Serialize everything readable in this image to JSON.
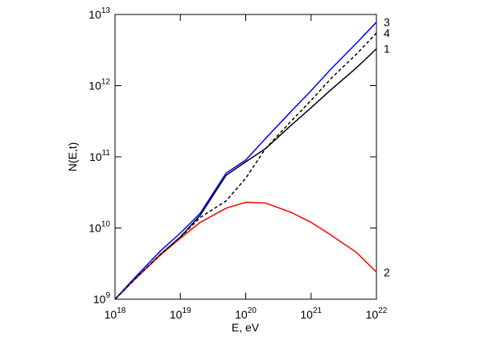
{
  "chart_data": {
    "type": "line",
    "xlabel": "E, eV",
    "ylabel": "N(E,t)",
    "x": [
      1e+18,
      2e+18,
      5e+18,
      1e+19,
      2e+19,
      5e+19,
      1e+20,
      2e+20,
      5e+20,
      1e+21,
      2e+21,
      5e+21,
      1e+22
    ],
    "xscale": "log",
    "yscale": "log",
    "xlim": [
      1e+18,
      1e+22
    ],
    "ylim": [
      1000000000.0,
      10000000000000.0
    ],
    "xticks": [
      {
        "value": 1e+18,
        "label": "10^18"
      },
      {
        "value": 1e+19,
        "label": "10^19"
      },
      {
        "value": 1e+20,
        "label": "10^20"
      },
      {
        "value": 1e+21,
        "label": "10^21"
      },
      {
        "value": 1e+22,
        "label": "10^22"
      }
    ],
    "yticks": [
      {
        "value": 1000000000.0,
        "label": "10^9"
      },
      {
        "value": 10000000000.0,
        "label": "10^10"
      },
      {
        "value": 100000000000.0,
        "label": "10^11"
      },
      {
        "value": 1000000000000.0,
        "label": "10^12"
      },
      {
        "value": 10000000000000.0,
        "label": "10^13"
      }
    ],
    "series": [
      {
        "name": "1",
        "color": "#000000",
        "dashed": false,
        "values": [
          1000000000.0,
          1900000000.0,
          4300000000.0,
          7500000000.0,
          15000000000.0,
          55000000000.0,
          85000000000.0,
          130000000000.0,
          280000000000.0,
          490000000000.0,
          870000000000.0,
          1800000000000.0,
          3300000000000.0
        ]
      },
      {
        "name": "2",
        "color": "#ff0000",
        "dashed": false,
        "values": [
          1000000000.0,
          1900000000.0,
          4200000000.0,
          7200000000.0,
          12000000000.0,
          19000000000.0,
          23000000000.0,
          22500000000.0,
          16500000000.0,
          12000000000.0,
          8000000000.0,
          4500000000.0,
          2400000000.0
        ]
      },
      {
        "name": "3",
        "color": "#0000ff",
        "dashed": false,
        "values": [
          1000000000.0,
          2000000000.0,
          4800000000.0,
          8500000000.0,
          16000000000.0,
          59000000000.0,
          90000000000.0,
          180000000000.0,
          440000000000.0,
          850000000000.0,
          1700000000000.0,
          4000000000000.0,
          7800000000000.0
        ]
      },
      {
        "name": "4",
        "color": "#000000",
        "dashed": true,
        "values": [
          1000000000.0,
          1900000000.0,
          4300000000.0,
          7400000000.0,
          14000000000.0,
          24000000000.0,
          50000000000.0,
          130000000000.0,
          320000000000.0,
          620000000000.0,
          1250000000000.0,
          2800000000000.0,
          5500000000000.0
        ]
      }
    ]
  }
}
